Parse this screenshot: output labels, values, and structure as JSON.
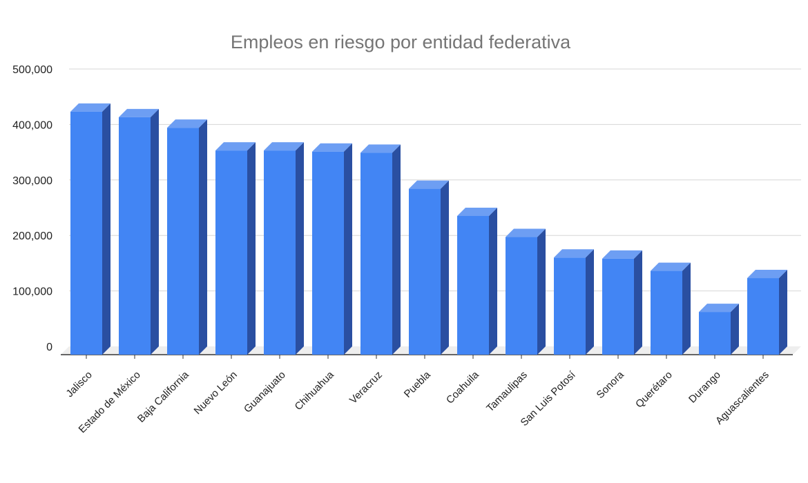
{
  "chart_data": {
    "type": "bar",
    "title": "Empleos en riesgo por entidad federativa",
    "xlabel": "",
    "ylabel": "",
    "ylim": [
      0,
      500000
    ],
    "yticks": [
      0,
      100000,
      200000,
      300000,
      400000,
      500000
    ],
    "ytick_labels": [
      "0",
      "100,000",
      "200,000",
      "300,000",
      "400,000",
      "500,000"
    ],
    "grid": true,
    "legend": "none",
    "style": "3d",
    "bar_color": "#4285f4",
    "categories": [
      "Jalisco",
      "Estado de México",
      "Baja California",
      "Nuevo León",
      "Guanajuato",
      "Chihuahua",
      "Veracruz",
      "Puebla",
      "Coahuila",
      "Tamaulipas",
      "San Luis Potosí",
      "Sonora",
      "Querétaro",
      "Durango",
      "Aguascalientes"
    ],
    "values": [
      438000,
      428000,
      409000,
      368000,
      368000,
      366000,
      364000,
      299000,
      250000,
      212000,
      175000,
      173000,
      151000,
      77000,
      138000
    ]
  }
}
